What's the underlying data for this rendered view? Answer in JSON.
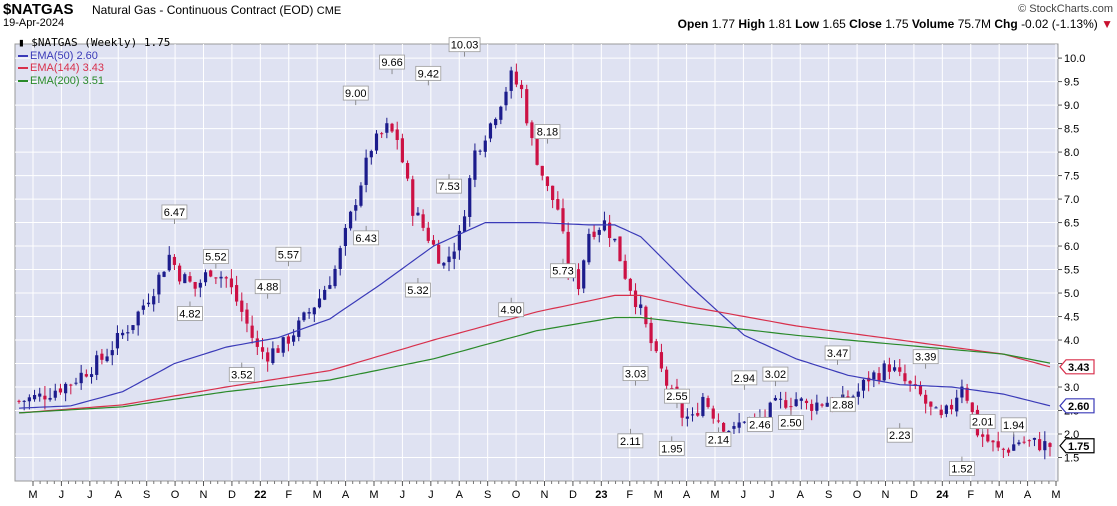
{
  "header": {
    "symbol": "$NATGAS",
    "name": "Natural Gas - Continuous Contract (EOD)",
    "exchange": "CME",
    "date": "19-Apr-2024",
    "source": "© StockCharts.com",
    "open_label": "Open",
    "open": "1.77",
    "high_label": "High",
    "high": "1.81",
    "low_label": "Low",
    "low": "1.65",
    "close_label": "Close",
    "close": "1.75",
    "volume_label": "Volume",
    "volume": "75.7M",
    "chg_label": "Chg",
    "chg": "-0.02 (-1.13%)",
    "chg_arrow": "▼"
  },
  "colors": {
    "background": "#ffffff",
    "plot_bg": "#dfe2f2",
    "grid": "#ffffff",
    "up_candle": "#1c1c8c",
    "down_candle": "#cc1144",
    "ema50": "#3a3ab8",
    "ema144": "#d8304c",
    "ema200": "#2a8a2a"
  },
  "chart_data": {
    "type": "candlestick",
    "title": "$NATGAS (Weekly) 1.75",
    "y_axis": {
      "side": "right",
      "range": [
        1.0,
        10.3
      ],
      "ticks": [
        "1.5",
        "2.0",
        "2.5",
        "3.0",
        "3.5",
        "4.0",
        "4.5",
        "5.0",
        "5.5",
        "6.0",
        "6.5",
        "7.0",
        "7.5",
        "8.0",
        "8.5",
        "9.0",
        "9.5",
        "10.0"
      ]
    },
    "x_axis": {
      "labels": [
        "M",
        "J",
        "J",
        "A",
        "S",
        "O",
        "N",
        "D",
        "22",
        "F",
        "M",
        "A",
        "M",
        "J",
        "J",
        "A",
        "S",
        "O",
        "N",
        "D",
        "23",
        "F",
        "M",
        "A",
        "M",
        "J",
        "J",
        "A",
        "S",
        "O",
        "N",
        "D",
        "24",
        "F",
        "M",
        "A",
        "M"
      ],
      "bold": [
        "22",
        "23",
        "24"
      ]
    },
    "grid": true,
    "legend_position": "top-left",
    "series": [
      {
        "name": "$NATGAS (Weekly)",
        "last": "1.75",
        "kind": "candles",
        "anchors": [
          [
            0,
            2.7
          ],
          [
            4,
            2.8
          ],
          [
            10,
            3.1
          ],
          [
            16,
            3.6
          ],
          [
            22,
            4.4
          ],
          [
            26,
            5.1
          ],
          [
            29,
            5.8
          ],
          [
            31,
            5.4
          ],
          [
            34,
            5.1
          ],
          [
            37,
            5.5
          ],
          [
            40,
            5.3
          ],
          [
            43,
            4.6
          ],
          [
            46,
            3.8
          ],
          [
            48,
            3.7
          ],
          [
            51,
            3.9
          ],
          [
            54,
            4.3
          ],
          [
            58,
            4.9
          ],
          [
            61,
            5.5
          ],
          [
            65,
            7.0
          ],
          [
            68,
            8.1
          ],
          [
            71,
            8.5
          ],
          [
            73,
            8.3
          ],
          [
            76,
            6.8
          ],
          [
            80,
            6.0
          ],
          [
            82,
            5.6
          ],
          [
            85,
            6.2
          ],
          [
            88,
            8.0
          ],
          [
            91,
            8.6
          ],
          [
            93,
            9.1
          ],
          [
            95,
            9.6
          ],
          [
            97,
            9.3
          ],
          [
            99,
            8.2
          ],
          [
            102,
            7.2
          ],
          [
            104,
            6.8
          ],
          [
            106,
            5.5
          ],
          [
            108,
            5.2
          ],
          [
            110,
            6.3
          ],
          [
            113,
            6.5
          ],
          [
            115,
            6.1
          ],
          [
            117,
            5.4
          ],
          [
            120,
            4.6
          ],
          [
            123,
            3.6
          ],
          [
            126,
            2.8
          ],
          [
            128,
            2.4
          ],
          [
            130,
            2.3
          ],
          [
            132,
            2.8
          ],
          [
            134,
            2.45
          ],
          [
            136,
            2.2
          ],
          [
            138,
            2.05
          ],
          [
            140,
            2.35
          ],
          [
            142,
            2.2
          ],
          [
            144,
            2.4
          ],
          [
            146,
            2.6
          ],
          [
            148,
            2.7
          ],
          [
            150,
            2.75
          ],
          [
            152,
            2.6
          ],
          [
            154,
            2.65
          ],
          [
            156,
            2.7
          ],
          [
            158,
            2.6
          ],
          [
            160,
            2.75
          ],
          [
            162,
            2.9
          ],
          [
            164,
            3.2
          ],
          [
            166,
            3.3
          ],
          [
            168,
            3.45
          ],
          [
            170,
            3.2
          ],
          [
            172,
            3.0
          ],
          [
            174,
            2.8
          ],
          [
            176,
            2.5
          ],
          [
            178,
            2.3
          ],
          [
            180,
            2.6
          ],
          [
            182,
            3.1
          ],
          [
            183,
            2.8
          ],
          [
            185,
            2.05
          ],
          [
            187,
            1.85
          ],
          [
            189,
            1.65
          ],
          [
            191,
            1.7
          ],
          [
            193,
            1.85
          ],
          [
            196,
            1.8
          ],
          [
            199,
            1.75
          ]
        ]
      },
      {
        "name": "EMA(50)",
        "last": "2.60",
        "kind": "line",
        "anchors": [
          [
            0,
            2.55
          ],
          [
            10,
            2.6
          ],
          [
            20,
            2.9
          ],
          [
            30,
            3.5
          ],
          [
            40,
            3.85
          ],
          [
            50,
            4.05
          ],
          [
            60,
            4.45
          ],
          [
            70,
            5.2
          ],
          [
            80,
            6.0
          ],
          [
            90,
            6.5
          ],
          [
            100,
            6.5
          ],
          [
            110,
            6.45
          ],
          [
            115,
            6.45
          ],
          [
            120,
            6.2
          ],
          [
            130,
            5.1
          ],
          [
            140,
            4.1
          ],
          [
            150,
            3.6
          ],
          [
            160,
            3.25
          ],
          [
            170,
            3.05
          ],
          [
            180,
            3.0
          ],
          [
            190,
            2.85
          ],
          [
            199,
            2.6
          ]
        ]
      },
      {
        "name": "EMA(144)",
        "last": "3.43",
        "kind": "line",
        "anchors": [
          [
            0,
            2.45
          ],
          [
            20,
            2.62
          ],
          [
            40,
            3.0
          ],
          [
            60,
            3.35
          ],
          [
            80,
            4.0
          ],
          [
            100,
            4.6
          ],
          [
            115,
            4.95
          ],
          [
            120,
            4.95
          ],
          [
            130,
            4.7
          ],
          [
            150,
            4.3
          ],
          [
            170,
            4.0
          ],
          [
            190,
            3.7
          ],
          [
            199,
            3.43
          ]
        ]
      },
      {
        "name": "EMA(200)",
        "last": "3.51",
        "kind": "line",
        "anchors": [
          [
            0,
            2.45
          ],
          [
            20,
            2.58
          ],
          [
            40,
            2.9
          ],
          [
            60,
            3.15
          ],
          [
            80,
            3.6
          ],
          [
            100,
            4.2
          ],
          [
            115,
            4.48
          ],
          [
            120,
            4.48
          ],
          [
            130,
            4.35
          ],
          [
            150,
            4.1
          ],
          [
            170,
            3.9
          ],
          [
            190,
            3.7
          ],
          [
            199,
            3.51
          ]
        ]
      }
    ],
    "annotations": [
      {
        "x": 30,
        "y": 6.47,
        "text": "6.47",
        "pos": "above"
      },
      {
        "x": 33,
        "y": 4.82,
        "text": "4.82",
        "pos": "below"
      },
      {
        "x": 38,
        "y": 5.52,
        "text": "5.52",
        "pos": "above"
      },
      {
        "x": 43,
        "y": 3.52,
        "text": "3.52",
        "pos": "below"
      },
      {
        "x": 48,
        "y": 4.88,
        "text": "4.88",
        "pos": "above"
      },
      {
        "x": 52,
        "y": 5.57,
        "text": "5.57",
        "pos": "above"
      },
      {
        "x": 65,
        "y": 9.0,
        "text": "9.00",
        "pos": "above"
      },
      {
        "x": 67,
        "y": 6.43,
        "text": "6.43",
        "pos": "below"
      },
      {
        "x": 72,
        "y": 9.66,
        "text": "9.66",
        "pos": "above"
      },
      {
        "x": 79,
        "y": 9.42,
        "text": "9.42",
        "pos": "above"
      },
      {
        "x": 77,
        "y": 5.32,
        "text": "5.32",
        "pos": "below"
      },
      {
        "x": 83,
        "y": 7.53,
        "text": "7.53",
        "pos": "below"
      },
      {
        "x": 86,
        "y": 10.03,
        "text": "10.03",
        "pos": "above"
      },
      {
        "x": 95,
        "y": 4.9,
        "text": "4.90",
        "pos": "below"
      },
      {
        "x": 102,
        "y": 8.18,
        "text": "8.18",
        "pos": "above"
      },
      {
        "x": 105,
        "y": 5.73,
        "text": "5.73",
        "pos": "below"
      },
      {
        "x": 119,
        "y": 3.03,
        "text": "3.03",
        "pos": "above"
      },
      {
        "x": 118,
        "y": 2.11,
        "text": "2.11",
        "pos": "below"
      },
      {
        "x": 127,
        "y": 2.55,
        "text": "2.55",
        "pos": "above"
      },
      {
        "x": 126,
        "y": 1.95,
        "text": "1.95",
        "pos": "below"
      },
      {
        "x": 135,
        "y": 2.14,
        "text": "2.14",
        "pos": "below"
      },
      {
        "x": 140,
        "y": 2.94,
        "text": "2.94",
        "pos": "above"
      },
      {
        "x": 146,
        "y": 3.02,
        "text": "3.02",
        "pos": "above"
      },
      {
        "x": 143,
        "y": 2.46,
        "text": "2.46",
        "pos": "below"
      },
      {
        "x": 149,
        "y": 2.5,
        "text": "2.50",
        "pos": "below"
      },
      {
        "x": 158,
        "y": 3.47,
        "text": "3.47",
        "pos": "above"
      },
      {
        "x": 159,
        "y": 2.88,
        "text": "2.88",
        "pos": "below"
      },
      {
        "x": 175,
        "y": 3.39,
        "text": "3.39",
        "pos": "above"
      },
      {
        "x": 170,
        "y": 2.23,
        "text": "2.23",
        "pos": "below"
      },
      {
        "x": 186,
        "y": 2.01,
        "text": "2.01",
        "pos": "above"
      },
      {
        "x": 182,
        "y": 1.52,
        "text": "1.52",
        "pos": "below"
      },
      {
        "x": 192,
        "y": 1.94,
        "text": "1.94",
        "pos": "above"
      }
    ],
    "right_tags": [
      {
        "value": 3.43,
        "text": "3.43",
        "color": "#d8304c"
      },
      {
        "value": 2.6,
        "text": "2.60",
        "color": "#3a3ab8"
      },
      {
        "value": 1.75,
        "text": "1.75",
        "color": "#000000"
      }
    ]
  }
}
